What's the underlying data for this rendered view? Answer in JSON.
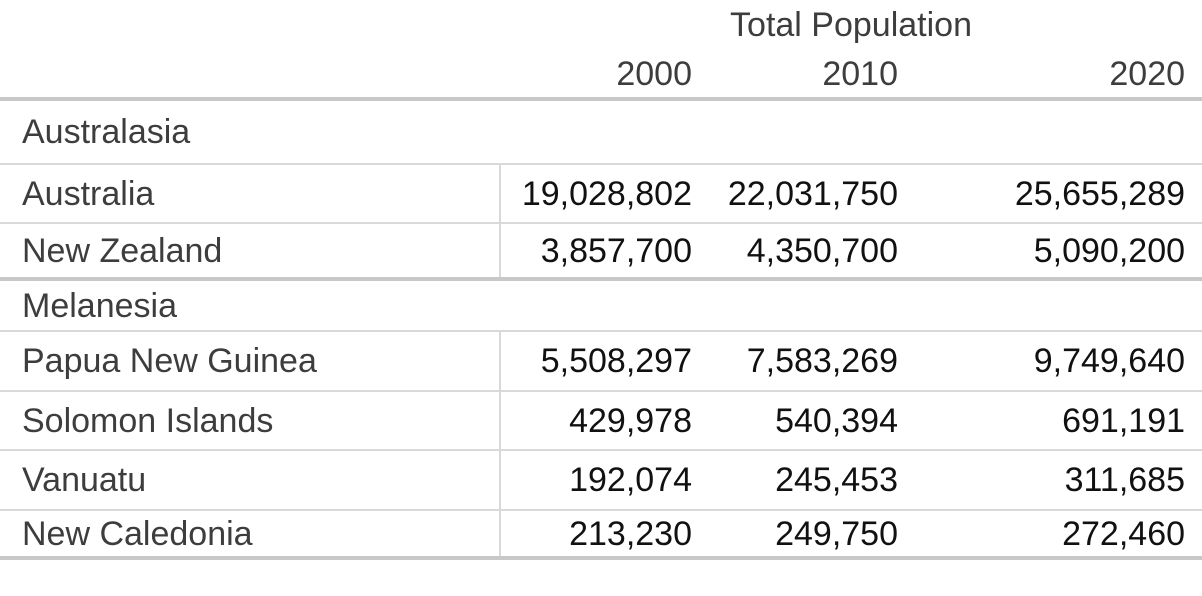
{
  "chart_data": {
    "type": "table",
    "title": "Total Population",
    "spanner": "Total Population",
    "year_columns": [
      "2000",
      "2010",
      "2020"
    ],
    "sections": [
      {
        "name": "Australasia",
        "rows": [
          {
            "label": "Australia",
            "values": [
              "19,028,802",
              "22,031,750",
              "25,655,289"
            ]
          },
          {
            "label": "New Zealand",
            "values": [
              "3,857,700",
              "4,350,700",
              "5,090,200"
            ]
          }
        ]
      },
      {
        "name": "Melanesia",
        "rows": [
          {
            "label": "Papua New Guinea",
            "values": [
              "5,508,297",
              "7,583,269",
              "9,749,640"
            ]
          },
          {
            "label": "Solomon Islands",
            "values": [
              "429,978",
              "540,394",
              "691,191"
            ]
          },
          {
            "label": "Vanuatu",
            "values": [
              "192,074",
              "245,453",
              "311,685"
            ]
          },
          {
            "label": "New Caledonia",
            "values": [
              "213,230",
              "249,750",
              "272,460"
            ]
          }
        ]
      }
    ],
    "layout": {
      "grid": "horizontal rules between rows; thick rules under header, above second section, and at bottom; thin vertical rule separating label column from numbers on country rows only",
      "number_alignment": "right",
      "label_alignment": "left"
    }
  },
  "colors": {
    "background": "#ffffff",
    "label_text": "#3d3d3d",
    "number_text": "#111111",
    "thin_rule": "#d9d9d9",
    "thick_rule": "#c8c8c8"
  }
}
